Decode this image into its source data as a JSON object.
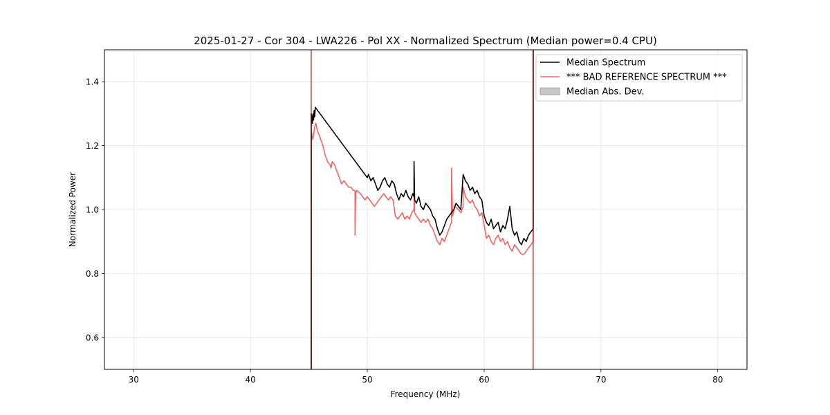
{
  "chart_data": {
    "type": "line",
    "title": "2025-01-27 - Cor 304 - LWA226 - Pol XX - Normalized Spectrum (Median power=0.4 CPU)",
    "xlabel": "Frequency (MHz)",
    "ylabel": "Normalized Power",
    "xlim": [
      27.5,
      82.5
    ],
    "ylim": [
      0.5,
      1.5
    ],
    "xticks": [
      30,
      40,
      50,
      60,
      70,
      80
    ],
    "yticks": [
      0.6,
      0.8,
      1.0,
      1.2,
      1.4
    ],
    "xtick_labels": [
      "30",
      "40",
      "50",
      "60",
      "70",
      "80"
    ],
    "ytick_labels": [
      "0.6",
      "0.8",
      "1.0",
      "1.2",
      "1.4"
    ],
    "grid": true,
    "legend_position": "top-right",
    "legend": [
      {
        "label": "Median Spectrum",
        "kind": "line",
        "color": "#000000"
      },
      {
        "label": "*** BAD REFERENCE SPECTRUM ***",
        "kind": "line",
        "color": "#f06464"
      },
      {
        "label": "Median Abs. Dev.",
        "kind": "patch",
        "color": "#c8c8c8"
      }
    ],
    "series": [
      {
        "color": "#f06464",
        "x": [
          45.2,
          45.2,
          45.25,
          45.3,
          45.4,
          45.5,
          45.6,
          45.7,
          45.8,
          46.0,
          46.2,
          46.4,
          46.6,
          46.8,
          46.9,
          47.0,
          47.2,
          47.4,
          47.6,
          47.8,
          48.0,
          48.2,
          48.4,
          48.6,
          48.8,
          48.95,
          48.95,
          49.0,
          49.1,
          49.4,
          49.6,
          49.8,
          50.0,
          50.2,
          50.4,
          50.6,
          50.8,
          51.0,
          51.2,
          51.4,
          51.6,
          51.8,
          52.0,
          52.2,
          52.4,
          52.6,
          52.8,
          53.0,
          53.2,
          53.4,
          53.6,
          53.8,
          54.0,
          54.0,
          54.05,
          54.2,
          54.4,
          54.6,
          54.8,
          55.0,
          55.2,
          55.4,
          55.6,
          55.8,
          56.0,
          56.2,
          56.4,
          56.6,
          56.8,
          57.0,
          57.2,
          57.2,
          57.3,
          57.5,
          57.8,
          58.0,
          58.2,
          58.2,
          58.4,
          58.6,
          58.8,
          59.0,
          59.2,
          59.4,
          59.6,
          59.8,
          60.0,
          60.2,
          60.4,
          60.6,
          60.8,
          61.0,
          61.2,
          61.4,
          61.6,
          61.8,
          62.0,
          62.2,
          62.4,
          62.6,
          62.8,
          63.0,
          63.2,
          63.4,
          63.6,
          63.8,
          64.0,
          64.2,
          64.2
        ],
        "y": [
          0.5,
          1.23,
          1.24,
          1.22,
          1.23,
          1.26,
          1.27,
          1.25,
          1.24,
          1.22,
          1.2,
          1.17,
          1.15,
          1.14,
          1.13,
          1.15,
          1.14,
          1.12,
          1.1,
          1.08,
          1.09,
          1.08,
          1.07,
          1.07,
          1.06,
          1.06,
          0.92,
          1.05,
          1.06,
          1.05,
          1.04,
          1.03,
          1.04,
          1.03,
          1.02,
          1.01,
          1.02,
          1.03,
          1.04,
          1.05,
          1.04,
          1.03,
          1.04,
          1.03,
          0.98,
          0.97,
          0.98,
          0.99,
          0.97,
          0.98,
          0.97,
          0.99,
          1.0,
          1.1,
          0.99,
          0.98,
          0.97,
          0.96,
          0.97,
          0.96,
          0.97,
          0.95,
          0.94,
          0.92,
          0.9,
          0.89,
          0.91,
          0.9,
          0.92,
          0.94,
          0.96,
          1.13,
          0.98,
          1.01,
          1.0,
          0.99,
          1.01,
          1.07,
          1.04,
          1.03,
          1.02,
          1.03,
          1.01,
          1.0,
          0.98,
          0.99,
          0.95,
          0.91,
          0.92,
          0.9,
          0.89,
          0.91,
          0.92,
          0.9,
          0.91,
          0.89,
          0.9,
          0.88,
          0.87,
          0.89,
          0.88,
          0.87,
          0.86,
          0.86,
          0.87,
          0.88,
          0.89,
          0.9,
          1.5
        ]
      },
      {
        "color": "#000000",
        "x": [
          45.2,
          45.2,
          45.25,
          45.3,
          45.35,
          45.4,
          45.45,
          45.5,
          45.55,
          50.0,
          50.1,
          50.3,
          50.5,
          50.7,
          50.9,
          51.1,
          51.3,
          51.5,
          51.7,
          51.9,
          52.1,
          52.3,
          52.5,
          52.7,
          52.9,
          53.1,
          53.3,
          53.5,
          53.7,
          53.9,
          54.0,
          54.0,
          54.05,
          54.2,
          54.4,
          54.6,
          54.8,
          55.0,
          55.2,
          55.4,
          55.6,
          55.8,
          56.0,
          56.2,
          56.4,
          56.6,
          56.8,
          57.0,
          57.2,
          57.4,
          57.6,
          57.8,
          58.0,
          58.2,
          58.4,
          58.6,
          58.8,
          59.0,
          59.2,
          59.4,
          59.6,
          59.8,
          60.0,
          60.2,
          60.4,
          60.6,
          60.8,
          61.0,
          61.2,
          61.4,
          61.6,
          61.8,
          62.0,
          62.2,
          62.4,
          62.6,
          62.8,
          63.0,
          63.2,
          63.4,
          63.6,
          63.8,
          64.0,
          64.2,
          64.2
        ],
        "y": [
          0.5,
          1.3,
          1.29,
          1.27,
          1.3,
          1.28,
          1.31,
          1.29,
          1.32,
          1.1,
          1.11,
          1.09,
          1.1,
          1.08,
          1.06,
          1.07,
          1.09,
          1.1,
          1.08,
          1.07,
          1.09,
          1.08,
          1.05,
          1.03,
          1.05,
          1.04,
          1.06,
          1.04,
          1.03,
          1.05,
          1.04,
          1.15,
          1.03,
          1.02,
          1.04,
          1.01,
          1.0,
          1.02,
          1.01,
          1.0,
          0.98,
          0.97,
          0.94,
          0.92,
          0.93,
          0.95,
          0.97,
          0.98,
          0.99,
          1.0,
          1.02,
          1.01,
          1.0,
          1.11,
          1.09,
          1.08,
          1.06,
          1.07,
          1.05,
          1.06,
          1.04,
          1.03,
          0.98,
          0.96,
          0.95,
          0.97,
          0.94,
          0.95,
          0.96,
          0.93,
          0.95,
          0.94,
          0.97,
          1.01,
          0.94,
          0.92,
          0.93,
          0.9,
          0.89,
          0.91,
          0.9,
          0.92,
          0.93,
          0.94,
          1.5
        ]
      }
    ]
  }
}
